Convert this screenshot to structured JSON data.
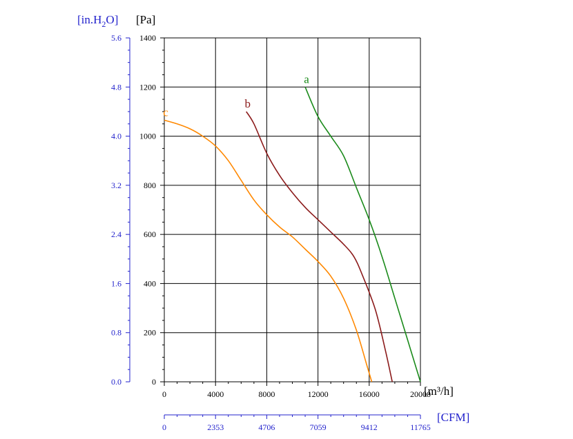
{
  "chart_data": {
    "type": "line",
    "title": "",
    "x_primary": {
      "unit": "[m³/h]",
      "ticks": [
        0,
        4000,
        8000,
        12000,
        16000,
        20000
      ],
      "range": [
        0,
        20000
      ]
    },
    "x_secondary": {
      "unit": "[CFM]",
      "ticks": [
        "0",
        "2353",
        "4706",
        "7059",
        "9412",
        "11765"
      ]
    },
    "y_primary": {
      "unit": "[Pa]",
      "ticks": [
        0,
        200,
        400,
        600,
        800,
        1000,
        1200,
        1400
      ],
      "range": [
        0,
        1400
      ]
    },
    "y_secondary": {
      "unit_prefix": "[in.H",
      "unit_sub": "2",
      "unit_suffix": "O]",
      "ticks": [
        "0.0",
        "0.8",
        "1.6",
        "2.4",
        "3.2",
        "4.0",
        "4.8",
        "5.6"
      ]
    },
    "grid": true,
    "series": [
      {
        "name": "a",
        "color": "#1a8a1a",
        "x": [
          11000,
          12000,
          13000,
          14000,
          15000,
          16000,
          17000,
          18000,
          19000,
          20000
        ],
        "y": [
          1200,
          1080,
          1000,
          920,
          790,
          660,
          510,
          340,
          170,
          0
        ]
      },
      {
        "name": "b",
        "color": "#8b1a1a",
        "x": [
          6400,
          7000,
          8000,
          9000,
          10000,
          11000,
          12000,
          13000,
          14000,
          14800,
          15500,
          16500,
          17300,
          17800
        ],
        "y": [
          1100,
          1050,
          930,
          840,
          770,
          710,
          660,
          610,
          560,
          510,
          430,
          290,
          120,
          0
        ]
      },
      {
        "name": "c",
        "color": "#ff8800",
        "x": [
          0,
          1000,
          2000,
          3000,
          4000,
          5000,
          6000,
          7000,
          8000,
          9000,
          10000,
          11000,
          12000,
          13000,
          14000,
          15000,
          15800,
          16200
        ],
        "y": [
          1065,
          1050,
          1030,
          1000,
          960,
          900,
          820,
          740,
          680,
          630,
          590,
          540,
          490,
          430,
          340,
          210,
          70,
          0
        ]
      }
    ]
  }
}
